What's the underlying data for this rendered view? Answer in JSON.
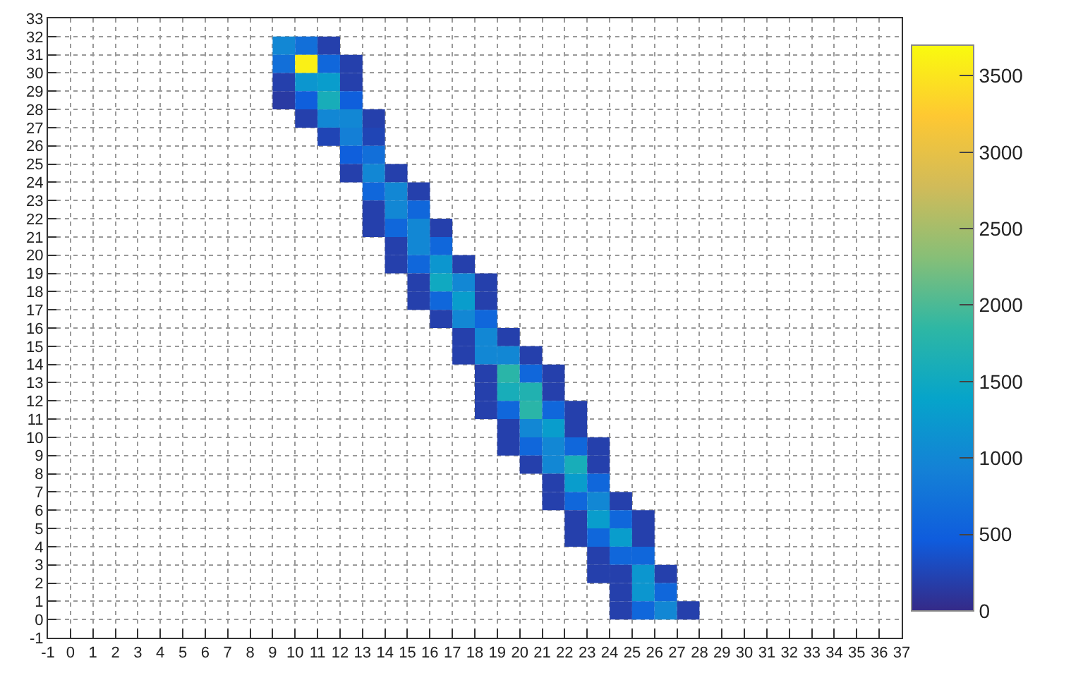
{
  "chart_data": {
    "type": "heatmap",
    "x": [
      9.5,
      10.5,
      11.5,
      12.5,
      13.5,
      14.5,
      15.5,
      16.5,
      17.5,
      18.5,
      19.5,
      20.5,
      21.5,
      22.5,
      23.5,
      24.5,
      25.5,
      26.5,
      27.5
    ],
    "y": [
      31.5,
      30.5,
      29.5,
      28.5,
      27.5,
      26.5,
      25.5,
      24.5,
      23.5,
      22.5,
      21.5,
      20.5,
      19.5,
      18.5,
      17.5,
      16.5,
      15.5,
      14.5,
      13.5,
      12.5,
      11.5,
      10.5,
      9.5,
      8.5,
      7.5,
      6.5,
      5.5,
      4.5,
      3.5,
      2.5,
      1.5,
      0.5
    ],
    "cells": [
      [
        1000,
        700,
        200,
        null,
        null,
        null,
        null,
        null,
        null,
        null,
        null,
        null,
        null,
        null,
        null,
        null,
        null,
        null,
        null
      ],
      [
        700,
        3600,
        600,
        200,
        null,
        null,
        null,
        null,
        null,
        null,
        null,
        null,
        null,
        null,
        null,
        null,
        null,
        null,
        null
      ],
      [
        200,
        1200,
        1300,
        200,
        null,
        null,
        null,
        null,
        null,
        null,
        null,
        null,
        null,
        null,
        null,
        null,
        null,
        null,
        null
      ],
      [
        150,
        500,
        1600,
        500,
        null,
        null,
        null,
        null,
        null,
        null,
        null,
        null,
        null,
        null,
        null,
        null,
        null,
        null,
        null
      ],
      [
        null,
        200,
        1000,
        1000,
        200,
        null,
        null,
        null,
        null,
        null,
        null,
        null,
        null,
        null,
        null,
        null,
        null,
        null,
        null
      ],
      [
        null,
        null,
        250,
        900,
        250,
        null,
        null,
        null,
        null,
        null,
        null,
        null,
        null,
        null,
        null,
        null,
        null,
        null,
        null
      ],
      [
        null,
        null,
        null,
        500,
        700,
        null,
        null,
        null,
        null,
        null,
        null,
        null,
        null,
        null,
        null,
        null,
        null,
        null,
        null
      ],
      [
        null,
        null,
        null,
        200,
        1000,
        200,
        null,
        null,
        null,
        null,
        null,
        null,
        null,
        null,
        null,
        null,
        null,
        null,
        null
      ],
      [
        null,
        null,
        null,
        null,
        600,
        1000,
        200,
        null,
        null,
        null,
        null,
        null,
        null,
        null,
        null,
        null,
        null,
        null,
        null
      ],
      [
        null,
        null,
        null,
        null,
        200,
        1000,
        600,
        null,
        null,
        null,
        null,
        null,
        null,
        null,
        null,
        null,
        null,
        null,
        null
      ],
      [
        null,
        null,
        null,
        null,
        200,
        600,
        1000,
        200,
        null,
        null,
        null,
        null,
        null,
        null,
        null,
        null,
        null,
        null,
        null
      ],
      [
        null,
        null,
        null,
        null,
        null,
        200,
        1000,
        600,
        null,
        null,
        null,
        null,
        null,
        null,
        null,
        null,
        null,
        null,
        null
      ],
      [
        null,
        null,
        null,
        null,
        null,
        200,
        600,
        1200,
        200,
        null,
        null,
        null,
        null,
        null,
        null,
        null,
        null,
        null,
        null
      ],
      [
        null,
        null,
        null,
        null,
        null,
        null,
        200,
        1500,
        1000,
        200,
        null,
        null,
        null,
        null,
        null,
        null,
        null,
        null,
        null
      ],
      [
        null,
        null,
        null,
        null,
        null,
        null,
        200,
        600,
        1300,
        200,
        null,
        null,
        null,
        null,
        null,
        null,
        null,
        null,
        null
      ],
      [
        null,
        null,
        null,
        null,
        null,
        null,
        null,
        200,
        1000,
        600,
        null,
        null,
        null,
        null,
        null,
        null,
        null,
        null,
        null
      ],
      [
        null,
        null,
        null,
        null,
        null,
        null,
        null,
        null,
        200,
        1000,
        200,
        null,
        null,
        null,
        null,
        null,
        null,
        null,
        null
      ],
      [
        null,
        null,
        null,
        null,
        null,
        null,
        null,
        null,
        200,
        1000,
        1000,
        200,
        null,
        null,
        null,
        null,
        null,
        null,
        null
      ],
      [
        null,
        null,
        null,
        null,
        null,
        null,
        null,
        null,
        null,
        200,
        1800,
        600,
        200,
        null,
        null,
        null,
        null,
        null,
        null
      ],
      [
        null,
        null,
        null,
        null,
        null,
        null,
        null,
        null,
        null,
        200,
        1600,
        1700,
        200,
        null,
        null,
        null,
        null,
        null,
        null
      ],
      [
        null,
        null,
        null,
        null,
        null,
        null,
        null,
        null,
        null,
        200,
        600,
        1800,
        600,
        200,
        null,
        null,
        null,
        null,
        null
      ],
      [
        null,
        null,
        null,
        null,
        null,
        null,
        null,
        null,
        null,
        null,
        200,
        1000,
        1300,
        200,
        null,
        null,
        null,
        null,
        null
      ],
      [
        null,
        null,
        null,
        null,
        null,
        null,
        null,
        null,
        null,
        null,
        200,
        600,
        1000,
        600,
        200,
        null,
        null,
        null,
        null
      ],
      [
        null,
        null,
        null,
        null,
        null,
        null,
        null,
        null,
        null,
        null,
        null,
        200,
        1000,
        1600,
        200,
        null,
        null,
        null,
        null
      ],
      [
        null,
        null,
        null,
        null,
        null,
        null,
        null,
        null,
        null,
        null,
        null,
        null,
        200,
        1300,
        600,
        null,
        null,
        null,
        null
      ],
      [
        null,
        null,
        null,
        null,
        null,
        null,
        null,
        null,
        null,
        null,
        null,
        null,
        200,
        600,
        1000,
        200,
        null,
        null,
        null
      ],
      [
        null,
        null,
        null,
        null,
        null,
        null,
        null,
        null,
        null,
        null,
        null,
        null,
        null,
        200,
        1300,
        600,
        200,
        null,
        null
      ],
      [
        null,
        null,
        null,
        null,
        null,
        null,
        null,
        null,
        null,
        null,
        null,
        null,
        null,
        200,
        600,
        1300,
        200,
        null,
        null
      ],
      [
        null,
        null,
        null,
        null,
        null,
        null,
        null,
        null,
        null,
        null,
        null,
        null,
        null,
        null,
        200,
        600,
        600,
        null,
        null
      ],
      [
        null,
        null,
        null,
        null,
        null,
        null,
        null,
        null,
        null,
        null,
        null,
        null,
        null,
        null,
        200,
        200,
        1200,
        200,
        null
      ],
      [
        null,
        null,
        null,
        null,
        null,
        null,
        null,
        null,
        null,
        null,
        null,
        null,
        null,
        null,
        null,
        200,
        1200,
        600,
        null
      ],
      [
        null,
        null,
        null,
        null,
        null,
        null,
        null,
        null,
        null,
        null,
        null,
        null,
        null,
        null,
        null,
        200,
        600,
        1000,
        200
      ]
    ],
    "clim": [
      0,
      3700
    ],
    "cticks": [
      0,
      500,
      1000,
      1500,
      2000,
      2500,
      3000,
      3500
    ],
    "xlim": [
      -1,
      37
    ],
    "xticks": [
      -1,
      0,
      1,
      2,
      3,
      4,
      5,
      6,
      7,
      8,
      9,
      10,
      11,
      12,
      13,
      14,
      15,
      16,
      17,
      18,
      19,
      20,
      21,
      22,
      23,
      24,
      25,
      26,
      27,
      28,
      29,
      30,
      31,
      32,
      33,
      34,
      35,
      36,
      37
    ],
    "ylim": [
      -1,
      33
    ],
    "yticks": [
      -1,
      0,
      1,
      2,
      3,
      4,
      5,
      6,
      7,
      8,
      9,
      10,
      11,
      12,
      13,
      14,
      15,
      16,
      17,
      18,
      19,
      20,
      21,
      22,
      23,
      24,
      25,
      26,
      27,
      28,
      29,
      30,
      31,
      32,
      33
    ],
    "grid": true
  }
}
